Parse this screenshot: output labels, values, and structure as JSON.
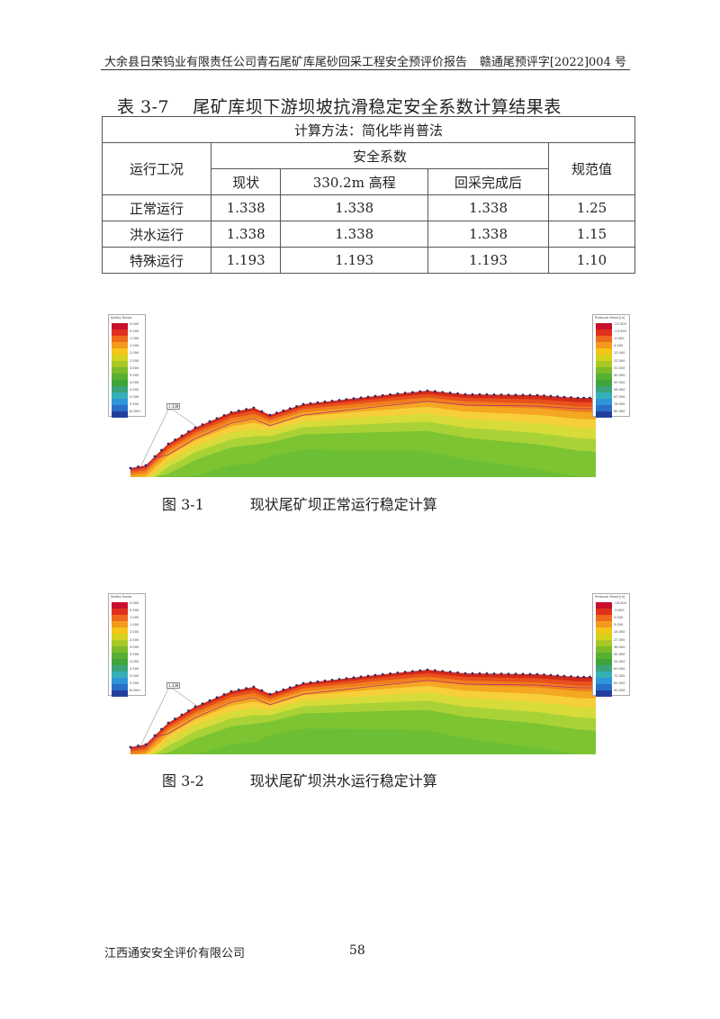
{
  "header": {
    "left": "大余县日荣钨业有限责任公司青石尾矿库尾砂回采工程安全预评价报告",
    "right": "赣通尾预评字[2022]004 号"
  },
  "table": {
    "caption": "表 3-7    尾矿库坝下游坝坡抗滑稳定安全系数计算结果表",
    "method": "计算方法：简化毕肖普法",
    "col_condition": "运行工况",
    "col_safety": "安全系数",
    "col_standard": "规范值",
    "sub_cols": [
      "现状",
      "330.2m 高程",
      "回采完成后"
    ],
    "rows": [
      {
        "condition": "正常运行",
        "values": [
          "1.338",
          "1.338",
          "1.338"
        ],
        "standard": "1.25"
      },
      {
        "condition": "洪水运行",
        "values": [
          "1.338",
          "1.338",
          "1.338"
        ],
        "standard": "1.15"
      },
      {
        "condition": "特殊运行",
        "values": [
          "1.193",
          "1.193",
          "1.193"
        ],
        "standard": "1.10"
      }
    ]
  },
  "figures": [
    {
      "caption": "图 3-1          现状尾矿坝正常运行稳定计算",
      "sf_title": "Safety Factor",
      "sf_labels": [
        "0.000",
        "0.500",
        "1.000",
        "1.500",
        "2.000",
        "2.500",
        "3.000",
        "3.500",
        "4.000",
        "4.500",
        "5.000",
        "5.500",
        "6.000+"
      ],
      "ph_title": "Pressure Head [m]",
      "ph_labels": [
        "-22.500",
        "-13.500",
        "-4.500",
        "4.500",
        "13.500",
        "22.500",
        "31.500",
        "40.500",
        "49.500",
        "58.500",
        "67.500",
        "76.500",
        "85.500"
      ],
      "slip_label": "1.338"
    },
    {
      "caption": "图 3-2          现状尾矿坝洪水运行稳定计算",
      "sf_title": "Safety Factor",
      "sf_labels": [
        "0.000",
        "0.500",
        "1.000",
        "1.500",
        "2.000",
        "2.500",
        "3.000",
        "3.500",
        "4.000",
        "4.500",
        "5.000",
        "5.500",
        "6.000+"
      ],
      "ph_title": "Pressure Head [m]",
      "ph_labels": [
        "-18.000",
        "-9.000",
        "0.000",
        "9.000",
        "18.000",
        "27.000",
        "36.000",
        "45.000",
        "54.000",
        "63.000",
        "72.000",
        "81.000",
        "90.000"
      ],
      "slip_label": "1.338"
    }
  ],
  "footer": {
    "company": "江西通安安全评价有限公司",
    "page": "58"
  }
}
